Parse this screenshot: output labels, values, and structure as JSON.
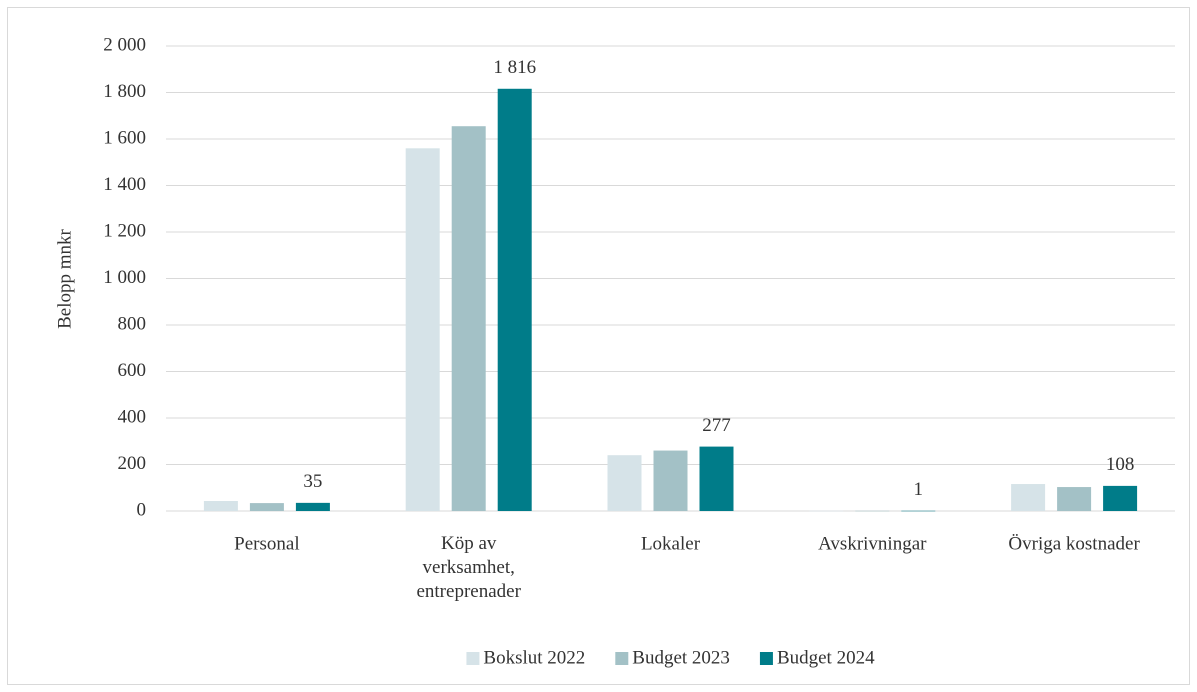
{
  "chart_data": {
    "type": "bar",
    "y_label": "Belopp mnkr",
    "categories": [
      "Personal",
      "Köp av verksamhet, entreprenader",
      "Lokaler",
      "Avskrivningar",
      "Övriga kostnader"
    ],
    "series": [
      {
        "name": "Bokslut 2022",
        "color": "#d6e3e8",
        "values": [
          43,
          1560,
          240,
          1,
          116
        ]
      },
      {
        "name": "Budget 2023",
        "color": "#a3c1c6",
        "values": [
          34,
          1655,
          260,
          1,
          103
        ]
      },
      {
        "name": "Budget 2024",
        "color": "#007c89",
        "values": [
          35,
          1816,
          277,
          1,
          108
        ],
        "value_labels": [
          "35",
          "1 816",
          "277",
          "1",
          "108"
        ]
      }
    ],
    "ylim": [
      0,
      2000
    ],
    "yticks": [
      0,
      200,
      400,
      600,
      800,
      {
        "value": 1000,
        "label": "1 000"
      },
      {
        "value": 1200,
        "label": "1 200"
      },
      {
        "value": 1400,
        "label": "1 400"
      },
      {
        "value": 1600,
        "label": "1 600"
      },
      {
        "value": 1800,
        "label": "1 800"
      },
      {
        "value": 2000,
        "label": "2 000"
      }
    ],
    "grid": true,
    "legend": "bottom"
  }
}
